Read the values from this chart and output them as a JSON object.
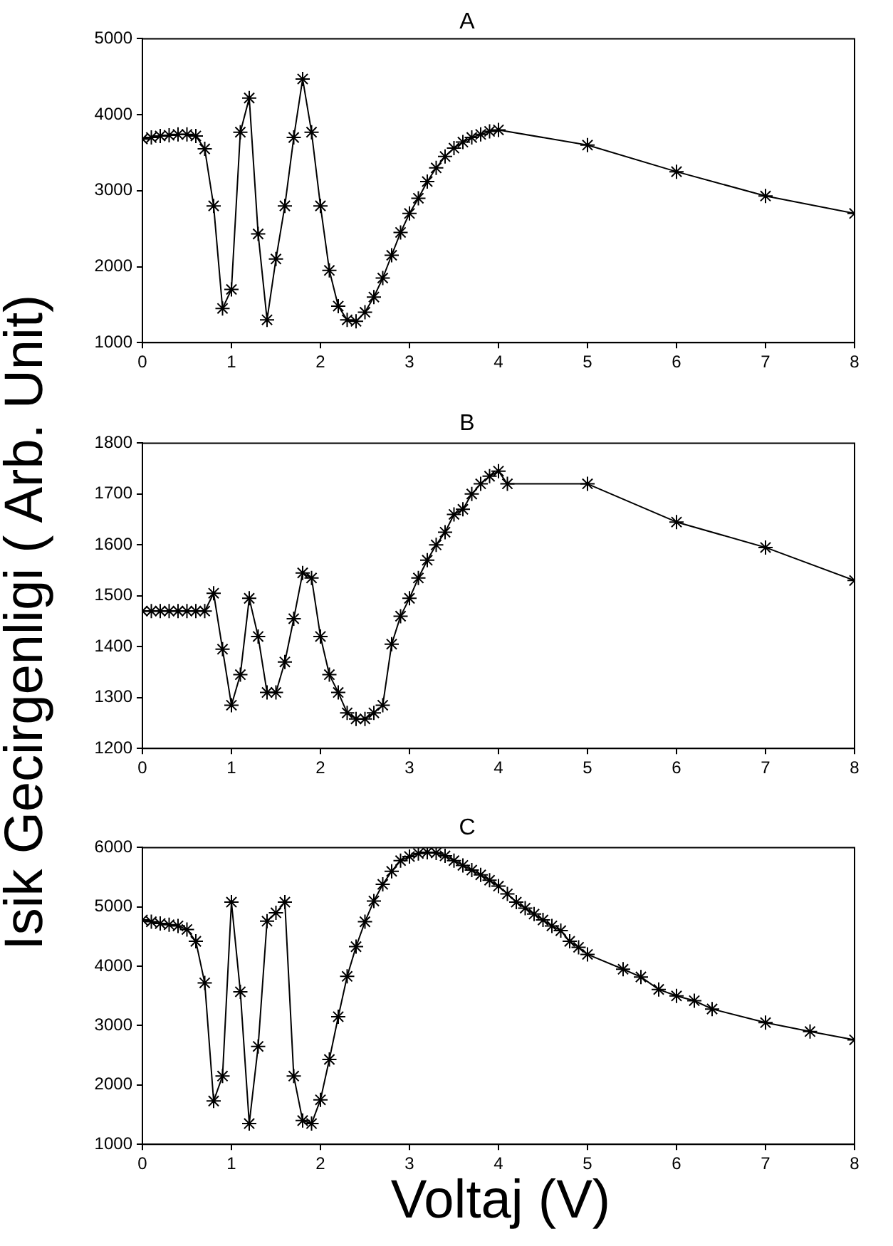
{
  "chart_data": [
    {
      "type": "line",
      "title": "A",
      "x": [
        0,
        0.1,
        0.2,
        0.3,
        0.4,
        0.5,
        0.6,
        0.7,
        0.8,
        0.9,
        1,
        1.1,
        1.2,
        1.3,
        1.4,
        1.5,
        1.6,
        1.7,
        1.8,
        1.9,
        2,
        2.1,
        2.2,
        2.3,
        2.4,
        2.5,
        2.6,
        2.7,
        2.8,
        2.9,
        3,
        3.1,
        3.2,
        3.3,
        3.4,
        3.5,
        3.6,
        3.7,
        3.8,
        3.9,
        4,
        5,
        6,
        7,
        8
      ],
      "series": [
        {
          "color": "#000000",
          "values": [
            3680,
            3700,
            3720,
            3730,
            3740,
            3740,
            3720,
            3550,
            2800,
            1450,
            1700,
            3770,
            4220,
            2430,
            1300,
            2100,
            2800,
            3700,
            4470,
            3770,
            2800,
            1950,
            1480,
            1300,
            1280,
            1400,
            1600,
            1850,
            2150,
            2450,
            2700,
            2900,
            3120,
            3300,
            3450,
            3560,
            3640,
            3700,
            3740,
            3780,
            3800,
            3600,
            3250,
            2930,
            2700
          ]
        }
      ],
      "xlim": [
        0,
        8
      ],
      "xticks": [
        0,
        1,
        2,
        3,
        4,
        5,
        6,
        7,
        8
      ],
      "ylim": [
        1000,
        5000
      ],
      "yticks": [
        1000,
        2000,
        3000,
        4000,
        5000
      ],
      "marker": "cross",
      "line_style": "solid",
      "grid": false,
      "legend": false
    },
    {
      "type": "line",
      "title": "B",
      "ylabel": "Isik Gecirgenligi ( Arb. Unit)",
      "x": [
        0,
        0.1,
        0.2,
        0.3,
        0.4,
        0.5,
        0.6,
        0.7,
        0.8,
        0.9,
        1,
        1.1,
        1.2,
        1.3,
        1.4,
        1.5,
        1.6,
        1.7,
        1.8,
        1.9,
        2,
        2.1,
        2.2,
        2.3,
        2.4,
        2.5,
        2.6,
        2.7,
        2.8,
        2.9,
        3,
        3.1,
        3.2,
        3.3,
        3.4,
        3.5,
        3.6,
        3.7,
        3.8,
        3.9,
        4,
        4.1,
        5,
        6,
        7,
        8
      ],
      "series": [
        {
          "color": "#000000",
          "values": [
            1470,
            1470,
            1470,
            1470,
            1470,
            1470,
            1470,
            1470,
            1505,
            1395,
            1285,
            1345,
            1495,
            1420,
            1310,
            1310,
            1370,
            1455,
            1545,
            1535,
            1420,
            1345,
            1310,
            1270,
            1258,
            1258,
            1270,
            1285,
            1405,
            1460,
            1495,
            1535,
            1570,
            1600,
            1625,
            1660,
            1670,
            1700,
            1720,
            1735,
            1745,
            1720,
            1720,
            1645,
            1595,
            1530
          ]
        }
      ],
      "xlim": [
        0,
        8
      ],
      "xticks": [
        0,
        1,
        2,
        3,
        4,
        5,
        6,
        7,
        8
      ],
      "ylim": [
        1200,
        1800
      ],
      "yticks": [
        1200,
        1300,
        1400,
        1500,
        1600,
        1700,
        1800
      ],
      "marker": "cross",
      "line_style": "solid",
      "grid": false,
      "legend": false
    },
    {
      "type": "line",
      "title": "C",
      "xlabel": "Voltaj (V)",
      "x": [
        0,
        0.1,
        0.2,
        0.3,
        0.4,
        0.5,
        0.6,
        0.7,
        0.8,
        0.9,
        1,
        1.1,
        1.2,
        1.3,
        1.4,
        1.5,
        1.6,
        1.7,
        1.8,
        1.9,
        2,
        2.1,
        2.2,
        2.3,
        2.4,
        2.5,
        2.6,
        2.7,
        2.8,
        2.9,
        3,
        3.1,
        3.2,
        3.3,
        3.4,
        3.5,
        3.6,
        3.7,
        3.8,
        3.9,
        4,
        4.1,
        4.2,
        4.3,
        4.4,
        4.5,
        4.6,
        4.7,
        4.8,
        4.9,
        5,
        5.4,
        5.6,
        5.8,
        6,
        6.2,
        6.4,
        7,
        7.5,
        8
      ],
      "series": [
        {
          "color": "#000000",
          "values": [
            4780,
            4750,
            4720,
            4700,
            4680,
            4620,
            4420,
            3720,
            1730,
            2150,
            5080,
            3570,
            1350,
            2650,
            4760,
            4900,
            5080,
            2150,
            1400,
            1350,
            1750,
            2430,
            3150,
            3830,
            4330,
            4750,
            5100,
            5380,
            5600,
            5780,
            5850,
            5900,
            5920,
            5910,
            5860,
            5780,
            5700,
            5620,
            5540,
            5450,
            5350,
            5220,
            5080,
            4980,
            4880,
            4780,
            4680,
            4600,
            4420,
            4320,
            4200,
            3950,
            3820,
            3610,
            3500,
            3420,
            3280,
            3050,
            2900,
            2760
          ]
        }
      ],
      "xlim": [
        0,
        8
      ],
      "xticks": [
        0,
        1,
        2,
        3,
        4,
        5,
        6,
        7,
        8
      ],
      "ylim": [
        1000,
        6000
      ],
      "yticks": [
        1000,
        2000,
        3000,
        4000,
        5000,
        6000
      ],
      "marker": "cross",
      "line_style": "solid",
      "grid": false,
      "legend": false
    }
  ]
}
